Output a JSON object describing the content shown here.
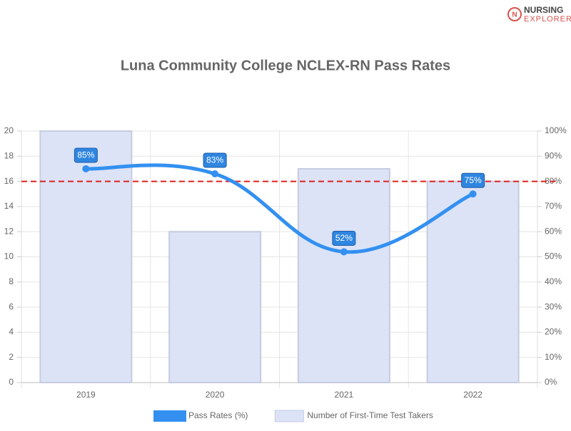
{
  "logo": {
    "line1": "NURSING",
    "line2": "EXPLORER"
  },
  "chart_data": {
    "type": "bar",
    "title": "Luna Community College NCLEX-RN Pass Rates",
    "categories": [
      "2019",
      "2020",
      "2021",
      "2022"
    ],
    "series": [
      {
        "name": "Pass Rates (%)",
        "type": "line",
        "axis": "y2",
        "color": "#3390f0",
        "values": [
          85,
          83,
          52,
          75
        ],
        "value_labels": [
          "85%",
          "83%",
          "52%",
          "75%"
        ]
      },
      {
        "name": "Number of First-Time Test Takers",
        "type": "bar",
        "color": "#dce3f7",
        "values": [
          20,
          12,
          17,
          16
        ]
      }
    ],
    "ylim": [
      0,
      20
    ],
    "yticks": [
      0,
      2,
      4,
      6,
      8,
      10,
      12,
      14,
      16,
      18,
      20
    ],
    "y2lim": [
      0,
      100
    ],
    "y2ticks": [
      {
        "value": 0,
        "label": "0%"
      },
      {
        "value": 10,
        "label": "10%"
      },
      {
        "value": 20,
        "label": "20%"
      },
      {
        "value": 30,
        "label": "30%"
      },
      {
        "value": 40,
        "label": "40%"
      },
      {
        "value": 50,
        "label": "50%"
      },
      {
        "value": 60,
        "label": "60%"
      },
      {
        "value": 70,
        "label": "70%"
      },
      {
        "value": 80,
        "label": "80%"
      },
      {
        "value": 90,
        "label": "90%"
      },
      {
        "value": 100,
        "label": "100%"
      }
    ],
    "reference_line": {
      "value": 80,
      "axis": "y2",
      "color": "#e02020"
    },
    "grid": true,
    "legend": "bottom"
  }
}
